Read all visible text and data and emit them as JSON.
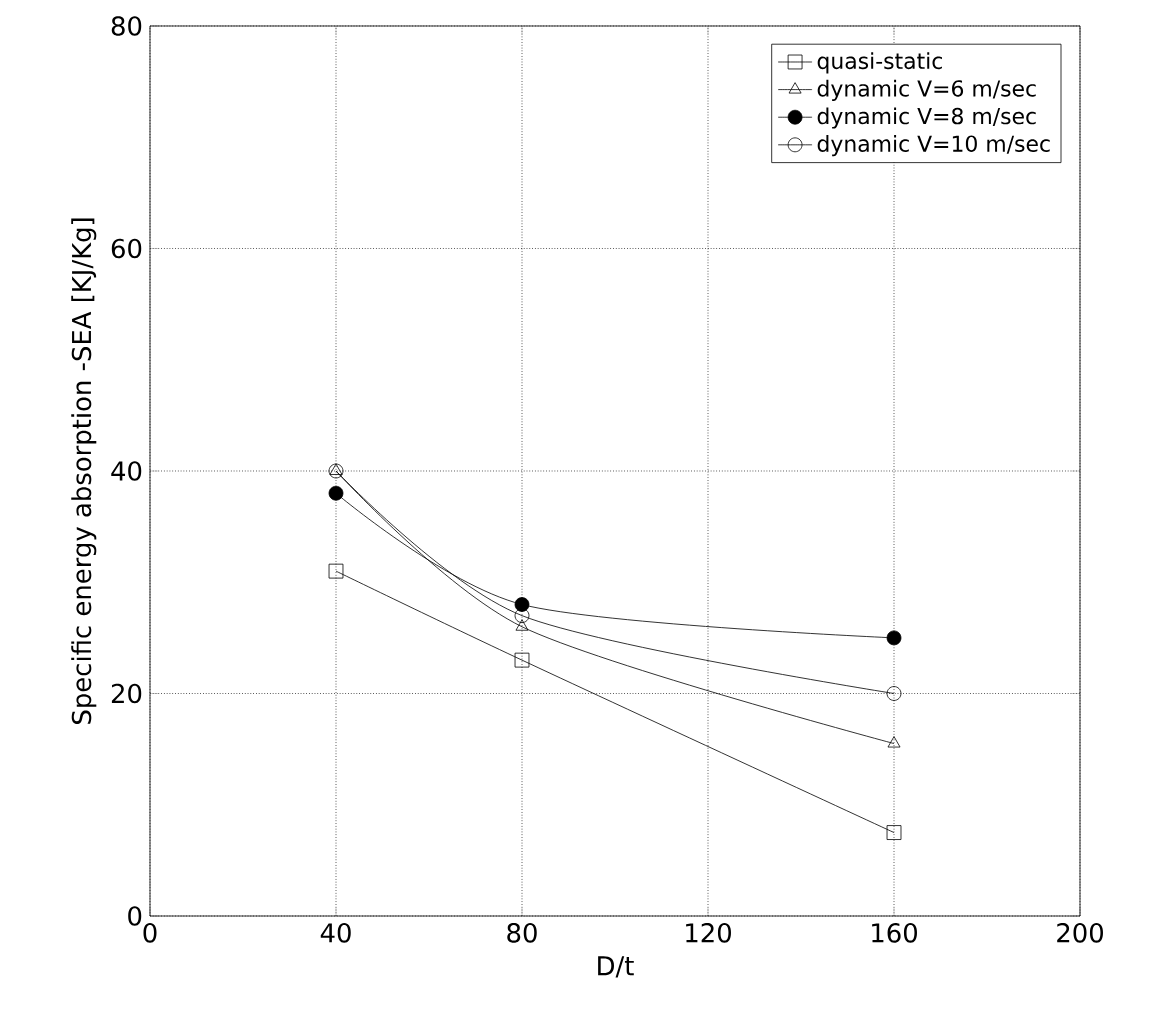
{
  "chart_data": {
    "type": "line",
    "xlabel": "D/t",
    "ylabel": "Specific energy absorption -SEA [KJ/Kg]",
    "x": [
      40,
      80,
      160
    ],
    "series": [
      {
        "name": "quasi-static",
        "color": "#000000",
        "marker": "square",
        "values": [
          31,
          23,
          7.5
        ]
      },
      {
        "name": "dynamic  V=6   m/sec",
        "color": "#000000",
        "marker": "triangle",
        "values": [
          40,
          26,
          15.5
        ]
      },
      {
        "name": "dynamic  V=8   m/sec",
        "color": "#000000",
        "marker": "filled circle",
        "values": [
          38,
          28,
          25
        ]
      },
      {
        "name": "dynamic  V=10  m/sec",
        "color": "#000000",
        "marker": "circle",
        "values": [
          40,
          27,
          20
        ]
      }
    ],
    "xlim": [
      0,
      200
    ],
    "ylim": [
      0,
      80
    ],
    "xticks": [
      0,
      40,
      80,
      120,
      160,
      200
    ],
    "yticks": [
      0,
      20,
      40,
      60,
      80
    ],
    "grid": true,
    "legend": "top right",
    "line_style": "solid"
  }
}
